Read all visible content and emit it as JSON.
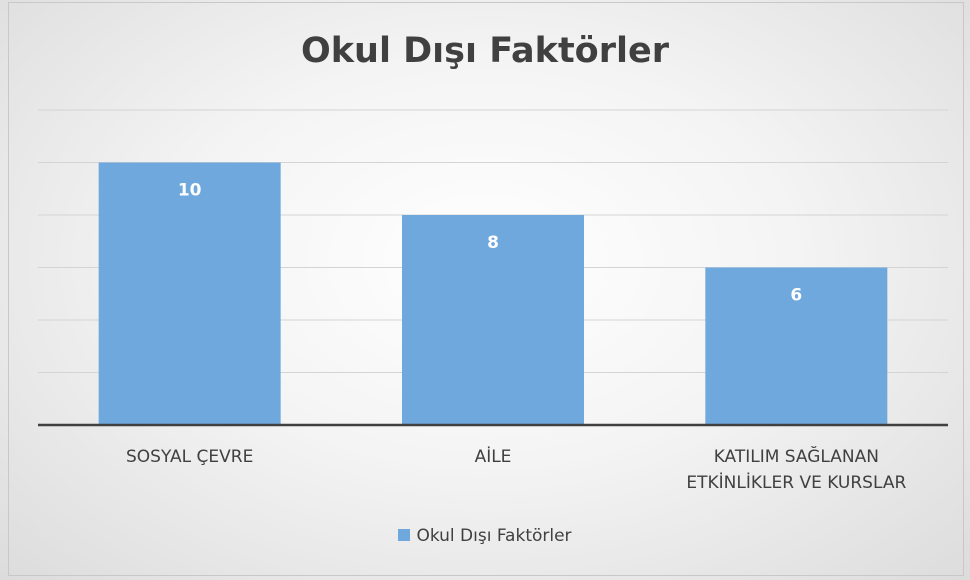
{
  "chart_data": {
    "type": "bar",
    "title": "Okul Dışı Faktörler",
    "categories": [
      "SOSYAL ÇEVRE",
      "AİLE",
      "KATILIM SAĞLANAN ETKİNLİKLER VE KURSLAR"
    ],
    "series": [
      {
        "name": "Okul Dışı Faktörler",
        "color": "#6fa8dc",
        "values": [
          10,
          8,
          6
        ]
      }
    ],
    "ylim": [
      0,
      12
    ],
    "yticks": [
      0,
      2,
      4,
      6,
      8,
      10,
      12
    ],
    "grid": true,
    "legend": "bottom"
  }
}
